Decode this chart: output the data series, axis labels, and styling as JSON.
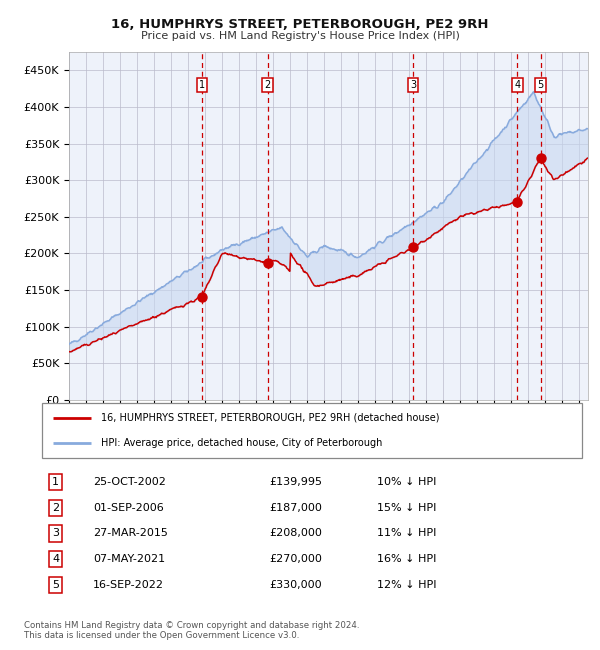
{
  "title1": "16, HUMPHRYS STREET, PETERBOROUGH, PE2 9RH",
  "title2": "Price paid vs. HM Land Registry's House Price Index (HPI)",
  "ylabel_ticks": [
    "£0",
    "£50K",
    "£100K",
    "£150K",
    "£200K",
    "£250K",
    "£300K",
    "£350K",
    "£400K",
    "£450K"
  ],
  "ytick_values": [
    0,
    50000,
    100000,
    150000,
    200000,
    250000,
    300000,
    350000,
    400000,
    450000
  ],
  "xlim_start": 1995.0,
  "xlim_end": 2025.5,
  "ylim": [
    0,
    475000
  ],
  "legend_line1": "16, HUMPHRYS STREET, PETERBOROUGH, PE2 9RH (detached house)",
  "legend_line2": "HPI: Average price, detached house, City of Peterborough",
  "transactions": [
    {
      "num": 1,
      "date": "25-OCT-2002",
      "price": 139995,
      "pct": "10% ↓ HPI",
      "year": 2002.81
    },
    {
      "num": 2,
      "date": "01-SEP-2006",
      "price": 187000,
      "pct": "15% ↓ HPI",
      "year": 2006.67
    },
    {
      "num": 3,
      "date": "27-MAR-2015",
      "price": 208000,
      "pct": "11% ↓ HPI",
      "year": 2015.23
    },
    {
      "num": 4,
      "date": "07-MAY-2021",
      "price": 270000,
      "pct": "16% ↓ HPI",
      "year": 2021.35
    },
    {
      "num": 5,
      "date": "16-SEP-2022",
      "price": 330000,
      "pct": "12% ↓ HPI",
      "year": 2022.71
    }
  ],
  "footer1": "Contains HM Land Registry data © Crown copyright and database right 2024.",
  "footer2": "This data is licensed under the Open Government Licence v3.0.",
  "bg_color": "#eef2fa",
  "grid_color": "#bbbbcc",
  "hpi_color": "#88aadd",
  "price_color": "#cc0000",
  "dashed_color": "#cc0000",
  "shade_color": "#c8d8f0"
}
